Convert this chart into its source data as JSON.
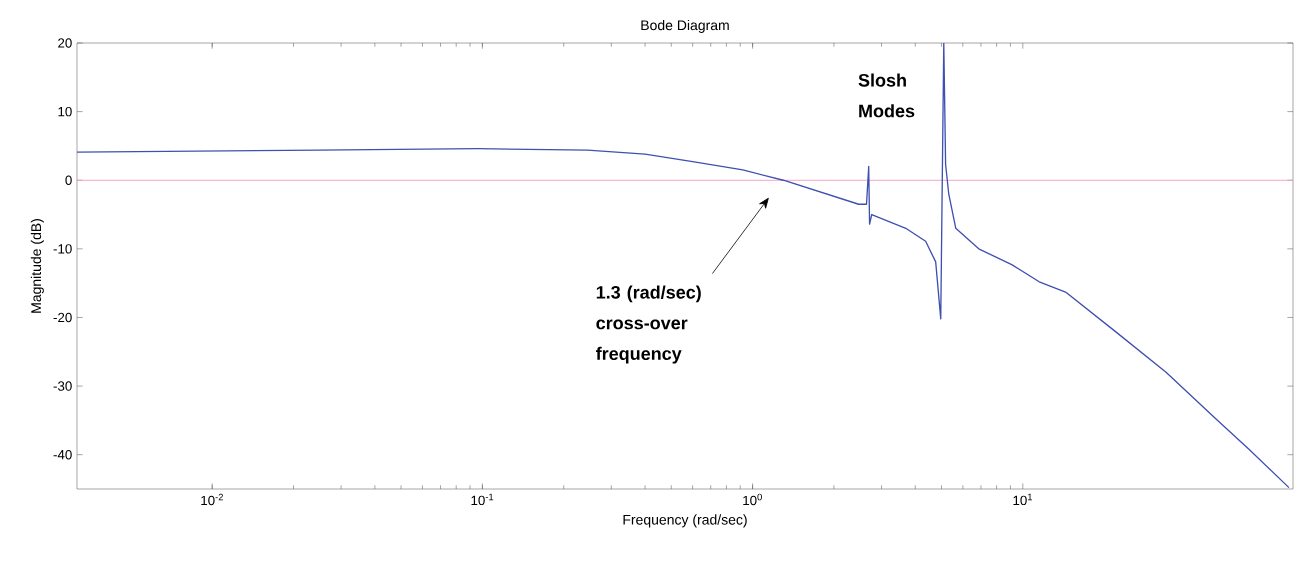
{
  "chart_data": {
    "type": "line",
    "title": "Bode Diagram",
    "xlabel": "Frequency  (rad/sec)",
    "ylabel": "Magnitude (dB)",
    "log": "x",
    "xlim": [
      0.00316,
      100
    ],
    "ylim": [
      -45,
      20
    ],
    "xticks": [
      {
        "value": 0.01,
        "label": "10$^{-2}$"
      },
      {
        "value": 0.1,
        "label": "10$^{-1}$"
      },
      {
        "value": 1,
        "label": "10$^{0}$"
      },
      {
        "value": 10,
        "label": "10$^{1}$"
      }
    ],
    "yticks": [
      -40,
      -30,
      -20,
      -10,
      0,
      10,
      20
    ],
    "series": [
      {
        "color": "#4050b0",
        "x": [
          0.00316,
          0.0249,
          0.096,
          0.245,
          0.4,
          0.6,
          0.92,
          1.3,
          2.47,
          2.64,
          2.69,
          2.71,
          2.76,
          3.69,
          4.37,
          4.76,
          4.97,
          5.1,
          5.18,
          5.32,
          5.65,
          6.87,
          9.1,
          11.5,
          14.4,
          22.1,
          33.9,
          51.9,
          68.7,
          96.6
        ],
        "values": [
          4.1,
          4.4,
          4.6,
          4.4,
          3.8,
          2.7,
          1.5,
          0,
          -3.5,
          -3.5,
          2.0,
          -6.4,
          -5.0,
          -7.0,
          -8.9,
          -11.9,
          -20.2,
          20,
          2.3,
          -2.0,
          -7.0,
          -10.0,
          -12.3,
          -14.8,
          -16.3,
          -22.1,
          -28.0,
          -34.8,
          -39.2,
          -44.8
        ]
      }
    ],
    "ref_lines": [
      {
        "axis": "y",
        "value": 0,
        "color": "#f2a0bf"
      }
    ],
    "annotations": [
      "Slosh Modes",
      "1.3 (rad/sec) cross-over frequency"
    ]
  }
}
